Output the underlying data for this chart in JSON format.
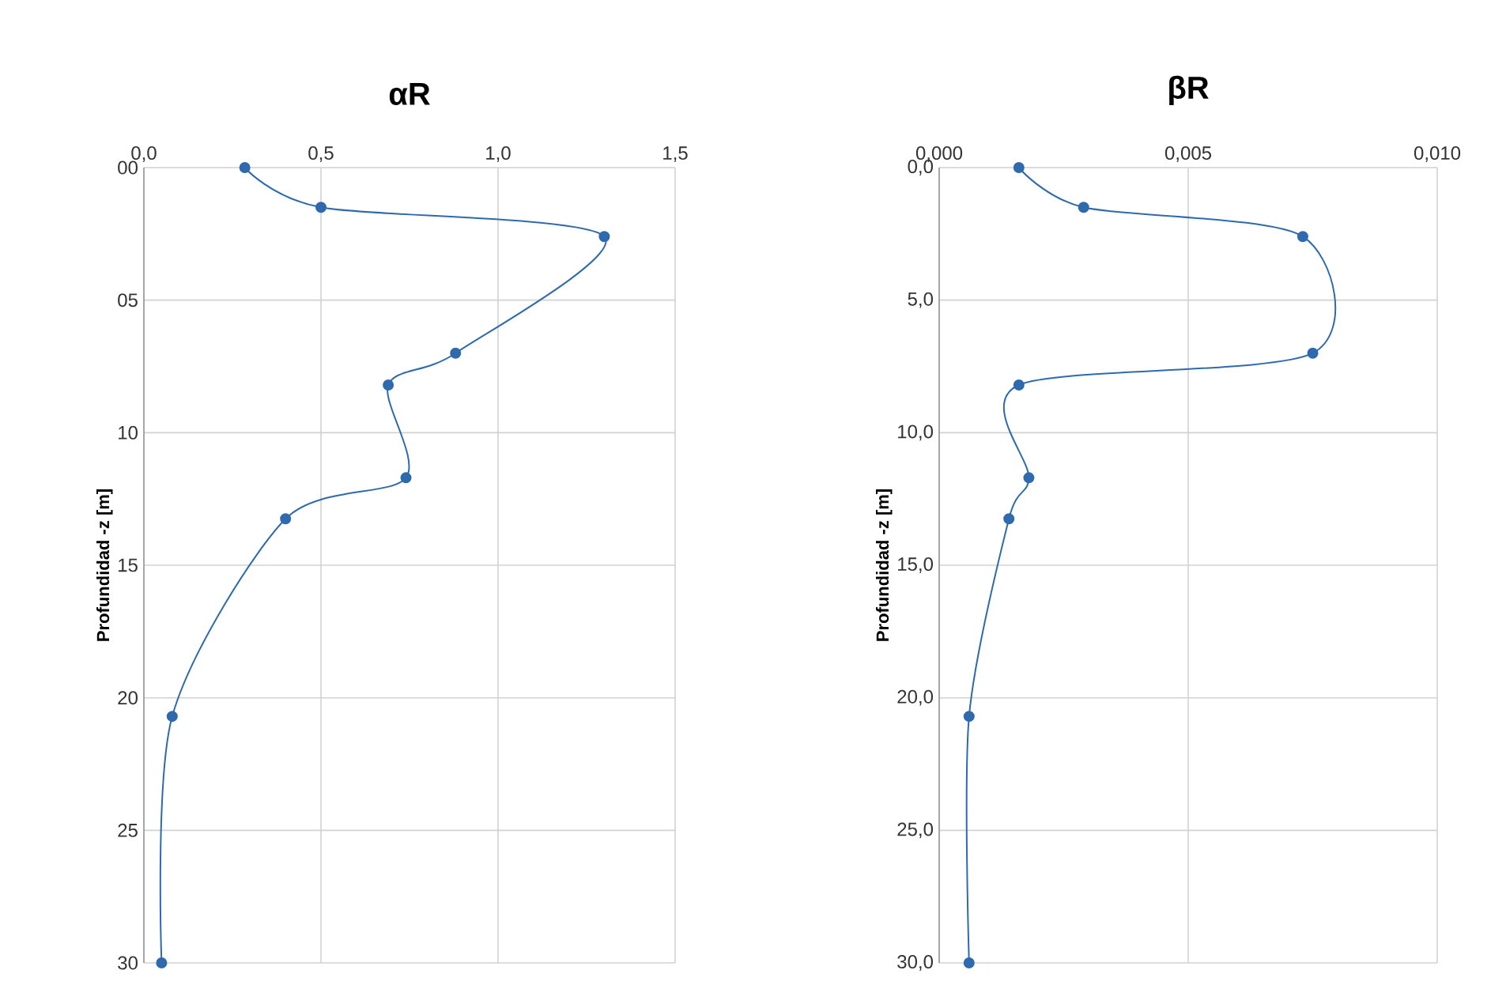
{
  "chart_data": [
    {
      "type": "line",
      "title": "αR",
      "ylabel": "Profundidad -z [m]",
      "series": [
        {
          "color": "#2e6aad",
          "x": [
            0.285,
            0.5,
            1.3,
            0.88,
            0.69,
            0.74,
            0.4,
            0.08,
            0.05
          ],
          "values": [
            0,
            1.5,
            2.6,
            7.0,
            8.2,
            11.7,
            13.25,
            20.7,
            30
          ]
        }
      ],
      "xlim": [
        0,
        1.5
      ],
      "xticks": [
        {
          "value": 0,
          "label": "0,0"
        },
        {
          "value": 0.5,
          "label": "0,5"
        },
        {
          "value": 1,
          "label": "1,0"
        },
        {
          "value": 1.5,
          "label": "1,5"
        }
      ],
      "ylim": [
        30,
        0
      ],
      "yticks": [
        {
          "value": 0,
          "label": "00"
        },
        {
          "value": 5,
          "label": "05"
        },
        10,
        15,
        20,
        25,
        30
      ],
      "grid": true,
      "marker": "circle",
      "line_style": "solid"
    },
    {
      "type": "line",
      "title": "βR",
      "ylabel": "Profundidad -z [m]",
      "series": [
        {
          "color": "#2e6aad",
          "x": [
            0.0016,
            0.0029,
            0.0073,
            0.0075,
            0.0016,
            0.0018,
            0.0014,
            0.0006,
            0.0006
          ],
          "values": [
            0,
            1.5,
            2.6,
            7.0,
            8.2,
            11.7,
            13.25,
            20.7,
            30
          ]
        }
      ],
      "xlim": [
        0,
        0.01
      ],
      "xticks": [
        {
          "value": 0,
          "label": "0,000"
        },
        {
          "value": 0.005,
          "label": "0,005"
        },
        {
          "value": 0.01,
          "label": "0,010"
        }
      ],
      "ylim": [
        30,
        0
      ],
      "yticks": [
        {
          "value": 0,
          "label": "0,0"
        },
        {
          "value": 5,
          "label": "5,0"
        },
        {
          "value": 10,
          "label": "10,0"
        },
        {
          "value": 15,
          "label": "15,0"
        },
        {
          "value": 20,
          "label": "20,0"
        },
        {
          "value": 25,
          "label": "25,0"
        },
        {
          "value": 30,
          "label": "30,0"
        }
      ],
      "grid": true,
      "marker": "circle",
      "line_style": "solid"
    }
  ]
}
